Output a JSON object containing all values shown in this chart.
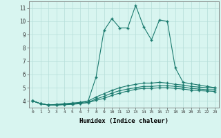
{
  "xlabel": "Humidex (Indice chaleur)",
  "x": [
    0,
    1,
    2,
    3,
    4,
    5,
    6,
    7,
    8,
    9,
    10,
    11,
    12,
    13,
    14,
    15,
    16,
    17,
    18,
    19,
    20,
    21,
    22,
    23
  ],
  "line1": [
    4.0,
    3.8,
    3.7,
    3.75,
    3.8,
    3.85,
    3.9,
    4.0,
    5.8,
    9.3,
    10.2,
    9.5,
    9.5,
    11.2,
    9.6,
    8.6,
    10.1,
    10.0,
    6.5,
    5.4,
    5.3,
    5.2,
    5.1,
    5.0
  ],
  "line2": [
    4.0,
    3.8,
    3.7,
    3.7,
    3.75,
    3.8,
    3.85,
    4.0,
    4.3,
    4.55,
    4.8,
    5.0,
    5.15,
    5.25,
    5.35,
    5.35,
    5.4,
    5.35,
    5.25,
    5.2,
    5.1,
    5.05,
    5.0,
    5.0
  ],
  "line3": [
    4.0,
    3.8,
    3.7,
    3.7,
    3.75,
    3.78,
    3.82,
    3.9,
    4.15,
    4.35,
    4.6,
    4.78,
    4.9,
    5.0,
    5.1,
    5.1,
    5.15,
    5.15,
    5.1,
    5.05,
    4.95,
    4.9,
    4.85,
    4.85
  ],
  "line4": [
    4.0,
    3.8,
    3.7,
    3.7,
    3.72,
    3.75,
    3.8,
    3.88,
    4.05,
    4.2,
    4.42,
    4.6,
    4.75,
    4.88,
    4.95,
    4.95,
    5.0,
    5.0,
    4.95,
    4.9,
    4.82,
    4.78,
    4.75,
    4.72
  ],
  "line_color": "#1a7a6e",
  "bg_color": "#d8f5f0",
  "grid_color": "#b5ddd8",
  "ylim": [
    3.5,
    11.5
  ],
  "yticks": [
    4,
    5,
    6,
    7,
    8,
    9,
    10,
    11
  ],
  "xticks": [
    0,
    1,
    2,
    3,
    4,
    5,
    6,
    7,
    8,
    9,
    10,
    11,
    12,
    13,
    14,
    15,
    16,
    17,
    18,
    19,
    20,
    21,
    22,
    23
  ],
  "marker": "+",
  "marker_size": 3,
  "line_width": 0.8
}
